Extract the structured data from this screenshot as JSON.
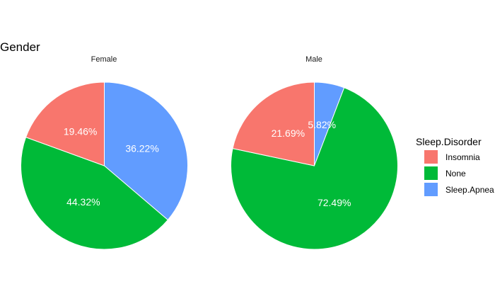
{
  "chart_data": {
    "type": "pie",
    "title": "Gender",
    "legend": {
      "title": "Sleep.Disorder",
      "position": "right",
      "entries": [
        "Insomnia",
        "None",
        "Sleep.Apnea"
      ]
    },
    "colors": {
      "Insomnia": "#F8766D",
      "None": "#00BA38",
      "Sleep.Apnea": "#619CFF"
    },
    "facets": [
      {
        "name": "Female",
        "slices": [
          {
            "category": "Sleep.Apnea",
            "value": 36.22,
            "label": "36.22%"
          },
          {
            "category": "None",
            "value": 44.32,
            "label": "44.32%"
          },
          {
            "category": "Insomnia",
            "value": 19.46,
            "label": "19.46%"
          }
        ]
      },
      {
        "name": "Male",
        "slices": [
          {
            "category": "Sleep.Apnea",
            "value": 5.82,
            "label": "5.82%"
          },
          {
            "category": "None",
            "value": 72.49,
            "label": "72.49%"
          },
          {
            "category": "Insomnia",
            "value": 21.69,
            "label": "21.69%"
          }
        ]
      }
    ]
  }
}
